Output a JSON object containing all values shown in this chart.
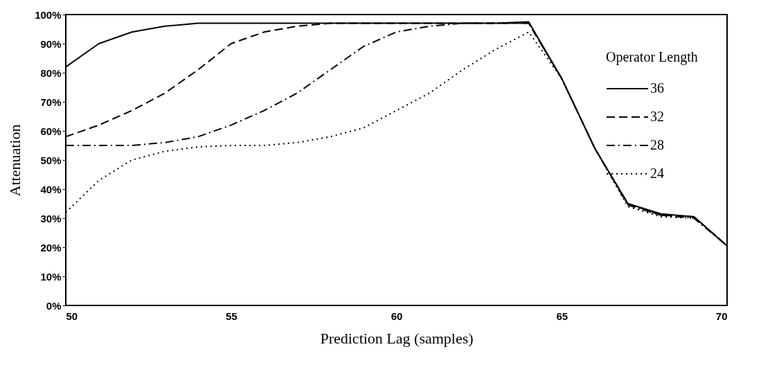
{
  "chart_data": {
    "type": "line",
    "xlabel": "Prediction Lag (samples)",
    "ylabel": "Attenuation",
    "legend_title": "Operator Length",
    "legend": "right",
    "grid": false,
    "marker": "none",
    "x": [
      50,
      51,
      52,
      53,
      54,
      55,
      56,
      57,
      58,
      59,
      60,
      61,
      62,
      63,
      64,
      65,
      66,
      67,
      68,
      69,
      70
    ],
    "xlim": [
      50,
      70
    ],
    "xticks": [
      50,
      55,
      60,
      65,
      70
    ],
    "ylim": [
      0,
      100
    ],
    "yticks": [
      {
        "value": 0,
        "label": "0%"
      },
      {
        "value": 10,
        "label": "10%"
      },
      {
        "value": 20,
        "label": "20%"
      },
      {
        "value": 30,
        "label": "30%"
      },
      {
        "value": 40,
        "label": "40%"
      },
      {
        "value": 50,
        "label": "50%"
      },
      {
        "value": 60,
        "label": "60%"
      },
      {
        "value": 70,
        "label": "70%"
      },
      {
        "value": 80,
        "label": "80%"
      },
      {
        "value": 90,
        "label": "90%"
      },
      {
        "value": 100,
        "label": "100%"
      }
    ],
    "series": [
      {
        "name": "36",
        "color": "#000000",
        "line_style": "solid",
        "values": [
          82,
          90,
          94,
          96,
          97,
          97,
          97,
          97,
          97,
          97,
          97,
          97,
          97,
          97,
          97.5,
          78,
          54,
          35,
          31.5,
          30.5,
          20.5
        ]
      },
      {
        "name": "32",
        "color": "#000000",
        "line_style": "dashed",
        "values": [
          58,
          62,
          67,
          73,
          81,
          90,
          94,
          96,
          97,
          97,
          97,
          97,
          97,
          97,
          97,
          78,
          54,
          35,
          31,
          30.5,
          20.5
        ]
      },
      {
        "name": "28",
        "color": "#000000",
        "line_style": "dashdot",
        "values": [
          55,
          55,
          55,
          56,
          58,
          62,
          67,
          73,
          81,
          89,
          94,
          96,
          97,
          97,
          97,
          78,
          54,
          34.5,
          31,
          30,
          20.5
        ]
      },
      {
        "name": "24",
        "color": "#000000",
        "line_style": "dotted",
        "values": [
          32,
          43,
          50,
          53,
          54.5,
          55,
          55,
          56,
          58,
          61,
          67,
          73,
          81,
          88,
          94,
          78,
          54,
          34,
          30.5,
          30,
          20.5
        ]
      }
    ]
  }
}
